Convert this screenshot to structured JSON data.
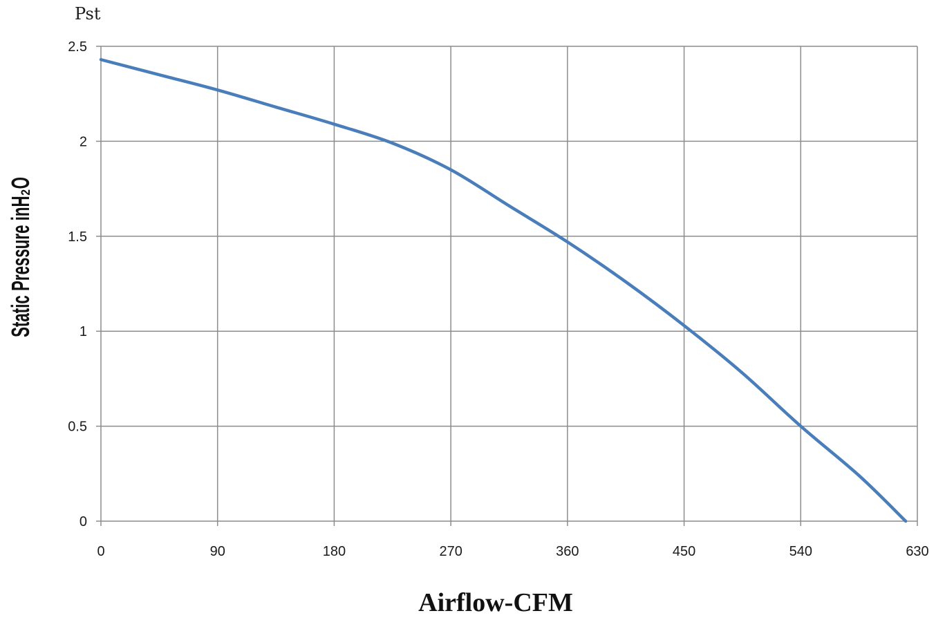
{
  "chart_data": {
    "type": "line",
    "title": "",
    "unit_label": "Pst",
    "xlabel": "Airflow-CFM",
    "ylabel": "Static Pressure inH₂O",
    "xlim": [
      0,
      630
    ],
    "ylim": [
      0,
      2.5
    ],
    "x_ticks": [
      "0",
      "90",
      "180",
      "270",
      "360",
      "450",
      "540",
      "630"
    ],
    "y_ticks": [
      "0",
      "0.5",
      "1",
      "1.5",
      "2",
      "2.5"
    ],
    "grid": true,
    "legend": "none",
    "line_color": "#4a7ebb",
    "series": [
      {
        "x": [
          0,
          45,
          90,
          135,
          180,
          225,
          270,
          315,
          360,
          405,
          450,
          495,
          540,
          585,
          621
        ],
        "y": [
          2.43,
          2.35,
          2.27,
          2.18,
          2.09,
          1.99,
          1.85,
          1.66,
          1.47,
          1.26,
          1.03,
          0.78,
          0.5,
          0.24,
          0.0
        ]
      }
    ]
  }
}
